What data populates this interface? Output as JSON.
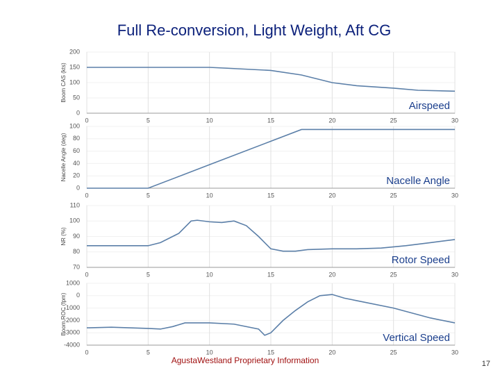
{
  "title": "Full Re-conversion, Light Weight, Aft CG",
  "footer": "AgustaWestland Proprietary Information",
  "page_number": "17",
  "chart_data": [
    {
      "type": "line",
      "annotation": "Airspeed",
      "ylabel": "Boom CAS (kts)",
      "color": "#5b7fa8",
      "x": [
        0,
        5,
        10,
        12,
        15,
        17.5,
        20,
        22,
        25,
        27,
        30
      ],
      "values": [
        150,
        150,
        150,
        146,
        140,
        125,
        100,
        90,
        82,
        75,
        72
      ],
      "xlim": [
        0,
        30
      ],
      "xticks": [
        0,
        5,
        10,
        15,
        20,
        25,
        30
      ],
      "ylim": [
        0,
        200
      ],
      "yticks": [
        0,
        50,
        100,
        150,
        200
      ],
      "grid": true
    },
    {
      "type": "line",
      "annotation": "Nacelle Angle",
      "ylabel": "Nacelle Angle (deg)",
      "color": "#5b7fa8",
      "x": [
        0,
        5,
        10,
        15,
        17.5,
        20,
        25,
        30
      ],
      "values": [
        0,
        0,
        38,
        76,
        95,
        95,
        95,
        95
      ],
      "xlim": [
        0,
        30
      ],
      "xticks": [
        0,
        5,
        10,
        15,
        20,
        25,
        30
      ],
      "ylim": [
        0,
        100
      ],
      "yticks": [
        0,
        20,
        40,
        60,
        80,
        100
      ],
      "grid": true
    },
    {
      "type": "line",
      "annotation": "Rotor Speed",
      "ylabel": "NR (%)",
      "color": "#5b7fa8",
      "x": [
        0,
        5,
        6,
        7.5,
        8.5,
        9,
        10,
        11,
        12,
        13,
        14,
        15,
        16,
        17,
        18,
        20,
        22,
        24,
        26,
        28,
        30
      ],
      "values": [
        84,
        84,
        86,
        92,
        100,
        100.5,
        99.5,
        99,
        100,
        97,
        90,
        82,
        80.5,
        80.5,
        81.5,
        82,
        82,
        82.5,
        84,
        86,
        88
      ],
      "xlim": [
        0,
        30
      ],
      "xticks": [
        0,
        5,
        10,
        15,
        20,
        25,
        30
      ],
      "ylim": [
        70,
        110
      ],
      "yticks": [
        70,
        80,
        90,
        100,
        110
      ],
      "grid": true
    },
    {
      "type": "line",
      "annotation": "Vertical Speed",
      "ylabel": "Boom ROC (fpm)",
      "color": "#5b7fa8",
      "x": [
        0,
        2,
        5,
        6,
        7,
        8,
        10,
        12,
        14,
        14.5,
        15,
        16,
        17,
        18,
        19,
        20,
        21,
        22,
        25,
        28,
        30
      ],
      "values": [
        -2600,
        -2550,
        -2650,
        -2700,
        -2500,
        -2200,
        -2200,
        -2300,
        -2700,
        -3200,
        -3000,
        -2000,
        -1200,
        -500,
        0,
        100,
        -200,
        -400,
        -1000,
        -1800,
        -2200
      ],
      "xlim": [
        0,
        30
      ],
      "xticks": [
        0,
        5,
        10,
        15,
        20,
        25,
        30
      ],
      "ylim": [
        -4000,
        1000
      ],
      "yticks": [
        -4000,
        -3000,
        -2000,
        -1000,
        0,
        1000
      ],
      "grid": true
    }
  ]
}
